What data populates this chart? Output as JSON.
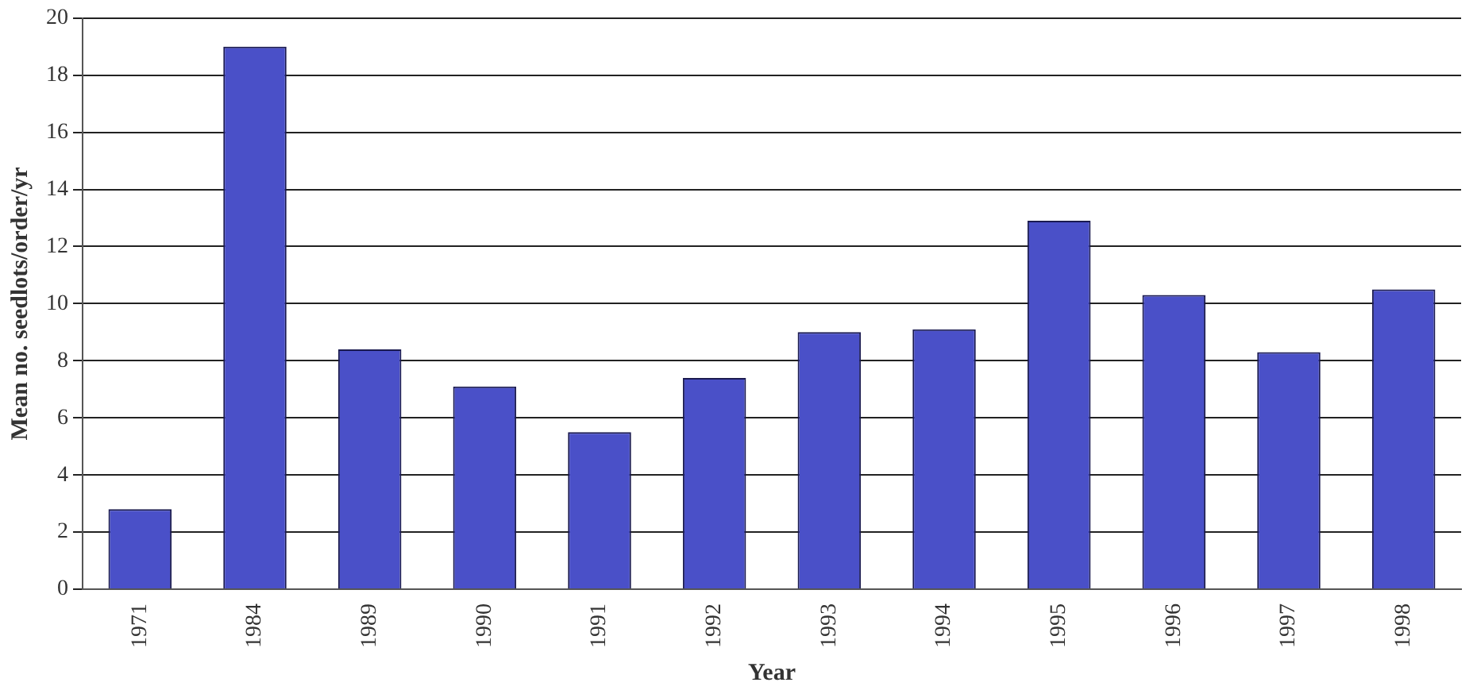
{
  "chart_data": {
    "type": "bar",
    "xlabel": "Year",
    "ylabel": "Mean no. seedlots/order/yr",
    "categories": [
      "1971",
      "1984",
      "1989",
      "1990",
      "1991",
      "1992",
      "1993",
      "1994",
      "1995",
      "1996",
      "1997",
      "1998"
    ],
    "values": [
      2.8,
      19.0,
      8.4,
      7.1,
      5.5,
      7.4,
      9.0,
      9.1,
      12.9,
      10.3,
      8.3,
      10.5
    ],
    "color": "#4a50c8",
    "ylim": [
      0,
      20
    ],
    "yticks": [
      0,
      2,
      4,
      6,
      8,
      10,
      12,
      14,
      16,
      18,
      20
    ],
    "grid": "y"
  }
}
